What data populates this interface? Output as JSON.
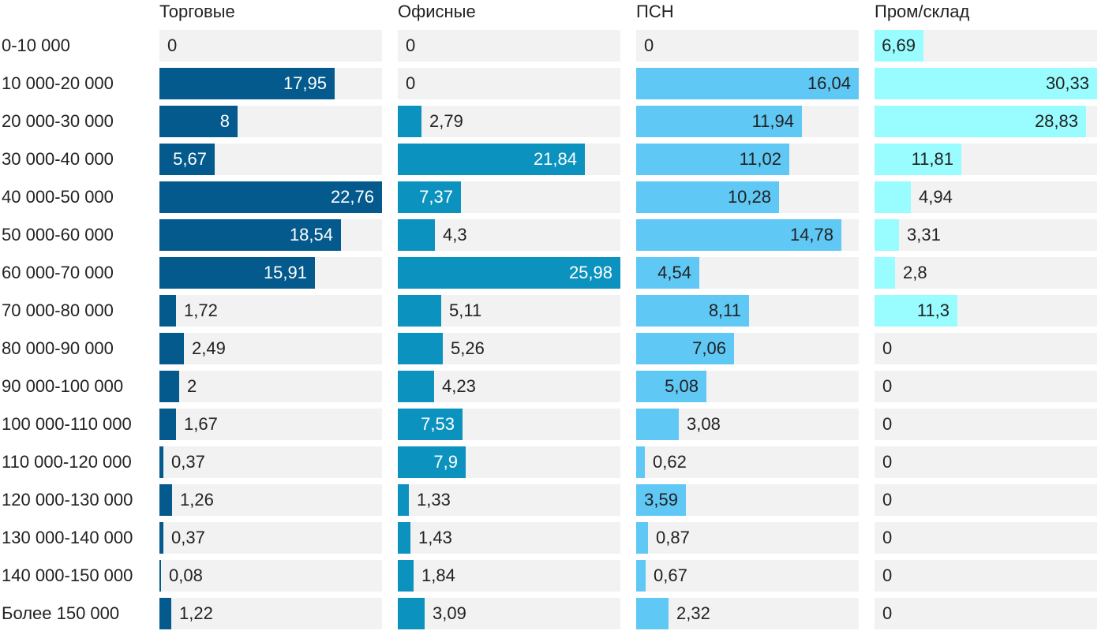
{
  "chart_data": {
    "type": "bar",
    "orientation": "horizontal",
    "layout": "small-multiples",
    "categories": [
      "0-10 000",
      "10 000-20 000",
      "20 000-30 000",
      "30 000-40 000",
      "40 000-50 000",
      "50 000-60 000",
      "60 000-70 000",
      "70 000-80 000",
      "80 000-90 000",
      "90 000-100 000",
      "100 000-110 000",
      "110 000-120 000",
      "120 000-130 000",
      "130 000-140 000",
      "140 000-150 000",
      "Более 150 000"
    ],
    "series": [
      {
        "name": "Торговые",
        "color": "#045a8d",
        "label_color": "#ffffff",
        "values": [
          "0",
          "17,95",
          "8",
          "5,67",
          "22,76",
          "18,54",
          "15,91",
          "1,72",
          "2,49",
          "2",
          "1,67",
          "0,37",
          "1,26",
          "0,37",
          "0,08",
          "1,22"
        ]
      },
      {
        "name": "Офисные",
        "color": "#0b92bf",
        "label_color": "#ffffff",
        "values": [
          "0",
          "0",
          "2,79",
          "21,84",
          "7,37",
          "4,3",
          "25,98",
          "5,11",
          "5,26",
          "4,23",
          "7,53",
          "7,9",
          "1,33",
          "1,43",
          "1,84",
          "3,09"
        ]
      },
      {
        "name": "ПСН",
        "color": "#5fc8f5",
        "label_color": "#222222",
        "values": [
          "0",
          "16,04",
          "11,94",
          "11,02",
          "10,28",
          "14,78",
          "4,54",
          "8,11",
          "7,06",
          "5,08",
          "3,08",
          "0,62",
          "3,59",
          "0,87",
          "0,67",
          "2,32"
        ]
      },
      {
        "name": "Пром/склад",
        "color": "#99fcfe",
        "label_color": "#222222",
        "values": [
          "6,69",
          "30,33",
          "28,83",
          "11,81",
          "4,94",
          "3,31",
          "2,8",
          "11,3",
          "0",
          "0",
          "0",
          "0",
          "0",
          "0",
          "0",
          "0"
        ]
      }
    ],
    "xlim_per_panel": [
      22.76,
      25.98,
      16.04,
      30.33
    ],
    "track_color": "#f2f2f2",
    "grid": false,
    "legend": "none"
  }
}
